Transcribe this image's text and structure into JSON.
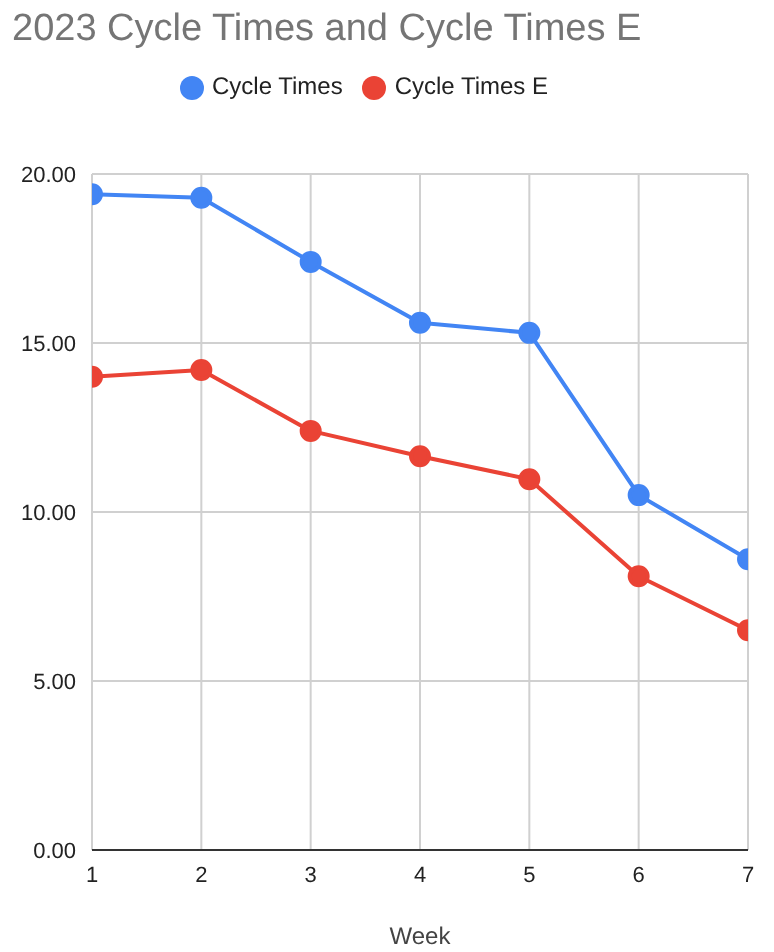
{
  "chart_data": {
    "type": "line",
    "title": "2023 Cycle Times and Cycle Times E",
    "xlabel": "Week",
    "x": [
      1,
      2,
      3,
      4,
      5,
      6,
      7
    ],
    "series": [
      {
        "name": "Cycle Times",
        "color": "#4285f4",
        "values": [
          19.4,
          19.3,
          17.4,
          15.6,
          15.3,
          10.5,
          8.6
        ]
      },
      {
        "name": "Cycle Times E",
        "color": "#ea4335",
        "values": [
          14.0,
          14.2,
          12.4,
          11.65,
          10.97,
          8.1,
          6.5
        ]
      }
    ],
    "xlim": [
      1,
      7
    ],
    "xticks": [
      1,
      2,
      3,
      4,
      5,
      6,
      7
    ],
    "ylim": [
      0,
      20
    ],
    "yticks": [
      {
        "value": 0,
        "label": "0.00"
      },
      {
        "value": 5,
        "label": "5.00"
      },
      {
        "value": 10,
        "label": "10.00"
      },
      {
        "value": 15,
        "label": "15.00"
      },
      {
        "value": 20,
        "label": "20.00"
      }
    ],
    "grid": true,
    "legend": "top",
    "marker": "circle",
    "line_style": "solid"
  }
}
